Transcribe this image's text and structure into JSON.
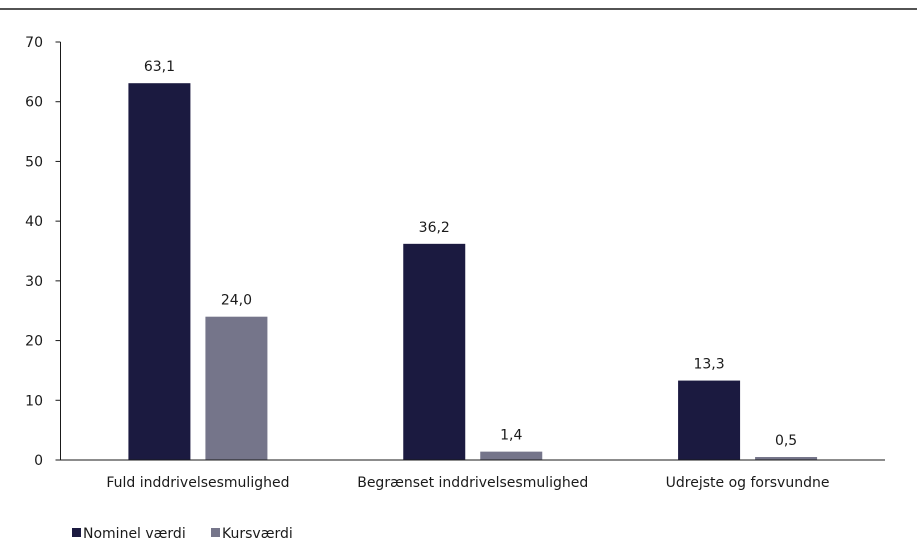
{
  "chart_data": {
    "type": "bar",
    "categories": [
      "Fuld inddrivelsesmulighed",
      "Begrænset inddrivelsesmulighed",
      "Udrejste og forsvundne"
    ],
    "series": [
      {
        "name": "Nominel værdi",
        "values": [
          63.1,
          36.2,
          13.3
        ],
        "labels": [
          "63,1",
          "36,2",
          "13,3"
        ],
        "color": "#1b1a40"
      },
      {
        "name": "Kursværdi",
        "values": [
          24.0,
          1.4,
          0.5
        ],
        "labels": [
          "24,0",
          "1,4",
          "0,5"
        ],
        "color": "#75758a"
      }
    ],
    "ylim": [
      0,
      70
    ],
    "yticks": [
      0,
      10,
      20,
      30,
      40,
      50,
      60,
      70
    ],
    "xlabel": "",
    "ylabel": "",
    "grid": false,
    "legend": "bottom-left"
  },
  "colors": {
    "top_rule": "#1a1a1a",
    "axis": "#1a1a1a",
    "text": "#1a1a1a"
  }
}
